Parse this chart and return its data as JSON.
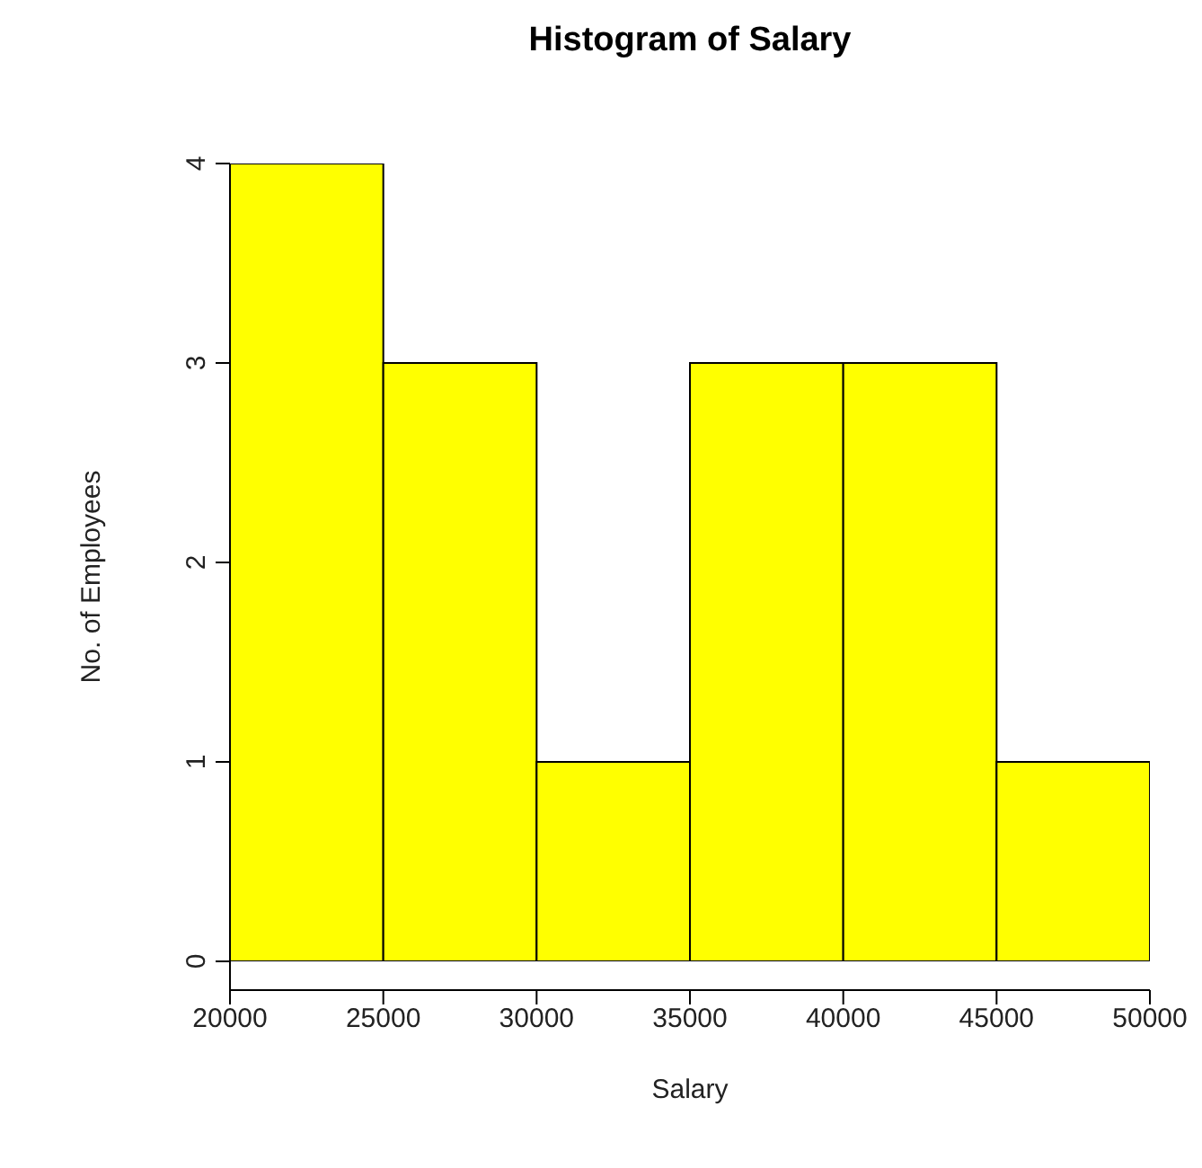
{
  "chart_data": {
    "type": "histogram",
    "title": "Histogram of Salary",
    "xlabel": "Salary",
    "ylabel": "No. of Employees",
    "bins": [
      20000,
      25000,
      30000,
      35000,
      40000,
      45000,
      50000
    ],
    "values": [
      4,
      3,
      1,
      3,
      3,
      1
    ],
    "color": "#ffff00",
    "xlim": [
      20000,
      50000
    ],
    "xticks": [
      20000,
      25000,
      30000,
      35000,
      40000,
      45000,
      50000
    ],
    "ylim": [
      0,
      4
    ],
    "yticks": [
      0,
      1,
      2,
      3,
      4
    ],
    "grid": false,
    "legend": false
  }
}
